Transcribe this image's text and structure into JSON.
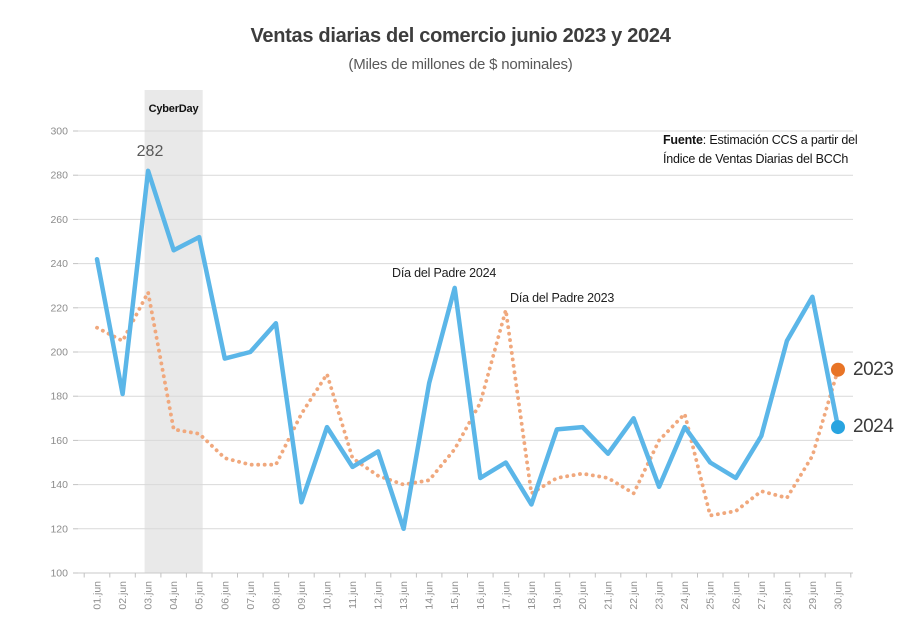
{
  "source": {
    "prefix": "Fuente",
    "line1_rest": ": Estimación CCS a partir del",
    "line2": "Índice de Ventas Diarias del BCCh"
  },
  "chart_data": {
    "type": "line",
    "title": "Ventas diarias del comercio junio 2023 y 2024",
    "subtitle": "(Miles de millones de $ nominales)",
    "xlabel": "",
    "ylabel": "",
    "ylim": [
      100,
      300
    ],
    "ytick_step": 20,
    "grid": "horizontal",
    "legend_position": "right-end-markers",
    "x_label_rotation": 90,
    "x": [
      "01.jun",
      "02.jun",
      "03.jun",
      "04.jun",
      "05.jun",
      "06.jun",
      "07.jun",
      "08.jun",
      "09.jun",
      "10.jun",
      "11.jun",
      "12.jun",
      "13.jun",
      "14.jun",
      "15.jun",
      "16.jun",
      "17.jun",
      "18.jun",
      "19.jun",
      "20.jun",
      "21.jun",
      "22.jun",
      "23.jun",
      "24.jun",
      "25.jun",
      "26.jun",
      "27.jun",
      "28.jun",
      "29.jun",
      "30.jun"
    ],
    "band": {
      "label": "CyberDay",
      "from": "03.jun",
      "to": "05.jun",
      "color": "#e9e9e9"
    },
    "series": [
      {
        "name": "2023",
        "style": "dotted",
        "color": "#f0a87d",
        "marker_color": "#e87426",
        "values": [
          211,
          205,
          227,
          165,
          163,
          152,
          149,
          149,
          172,
          190,
          152,
          144,
          140,
          142,
          156,
          177,
          219,
          136,
          143,
          145,
          143,
          136,
          160,
          172,
          126,
          128,
          137,
          134,
          153,
          192
        ]
      },
      {
        "name": "2024",
        "style": "solid",
        "color": "#5bb6e8",
        "marker_color": "#28a4e0",
        "values": [
          242,
          181,
          282,
          246,
          252,
          197,
          200,
          213,
          132,
          166,
          148,
          155,
          120,
          186,
          229,
          143,
          150,
          131,
          165,
          166,
          154,
          170,
          139,
          166,
          150,
          143,
          162,
          205,
          225,
          166
        ]
      }
    ],
    "annotations": {
      "peak_value": {
        "text": "282",
        "at": "03.jun",
        "series": "2024"
      },
      "fathers_day_2024": {
        "text": "Día del Padre 2024",
        "at": "15.jun",
        "series": "2024"
      },
      "fathers_day_2023": {
        "text": "Día del Padre 2023",
        "at": "17.jun",
        "series": "2023"
      }
    }
  }
}
